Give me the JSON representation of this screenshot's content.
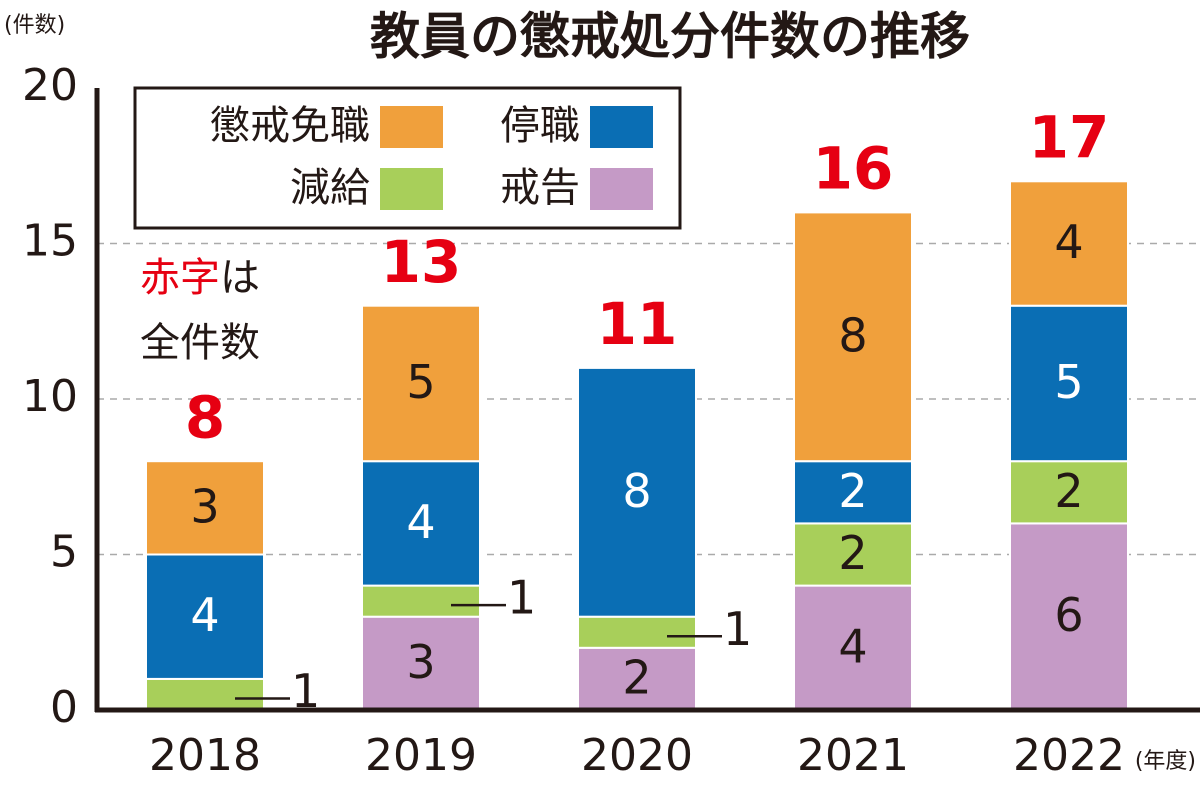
{
  "chart_data": {
    "type": "stacked-bar",
    "title": "教員の懲戒処分件数の推移",
    "y_axis_label": "(件数)",
    "x_axis_label": "(年度)",
    "categories": [
      "2018",
      "2019",
      "2020",
      "2021",
      "2022"
    ],
    "series": [
      {
        "name": "戒告",
        "color": "#c59ac6",
        "values": [
          0,
          3,
          2,
          4,
          6
        ]
      },
      {
        "name": "減給",
        "color": "#a8cf5a",
        "values": [
          1,
          1,
          1,
          2,
          2
        ]
      },
      {
        "name": "停職",
        "color": "#0a6eb4",
        "values": [
          4,
          4,
          8,
          2,
          5
        ]
      },
      {
        "name": "懲戒免職",
        "color": "#f0a03c",
        "values": [
          3,
          5,
          0,
          8,
          4
        ]
      }
    ],
    "totals": [
      8,
      13,
      11,
      16,
      17
    ],
    "totals_color": "#e60012",
    "annotation": [
      "赤字",
      "は",
      "全件数"
    ],
    "ylim": [
      0,
      20
    ],
    "yticks": [
      0,
      5,
      10,
      15,
      20
    ],
    "grid": true
  }
}
